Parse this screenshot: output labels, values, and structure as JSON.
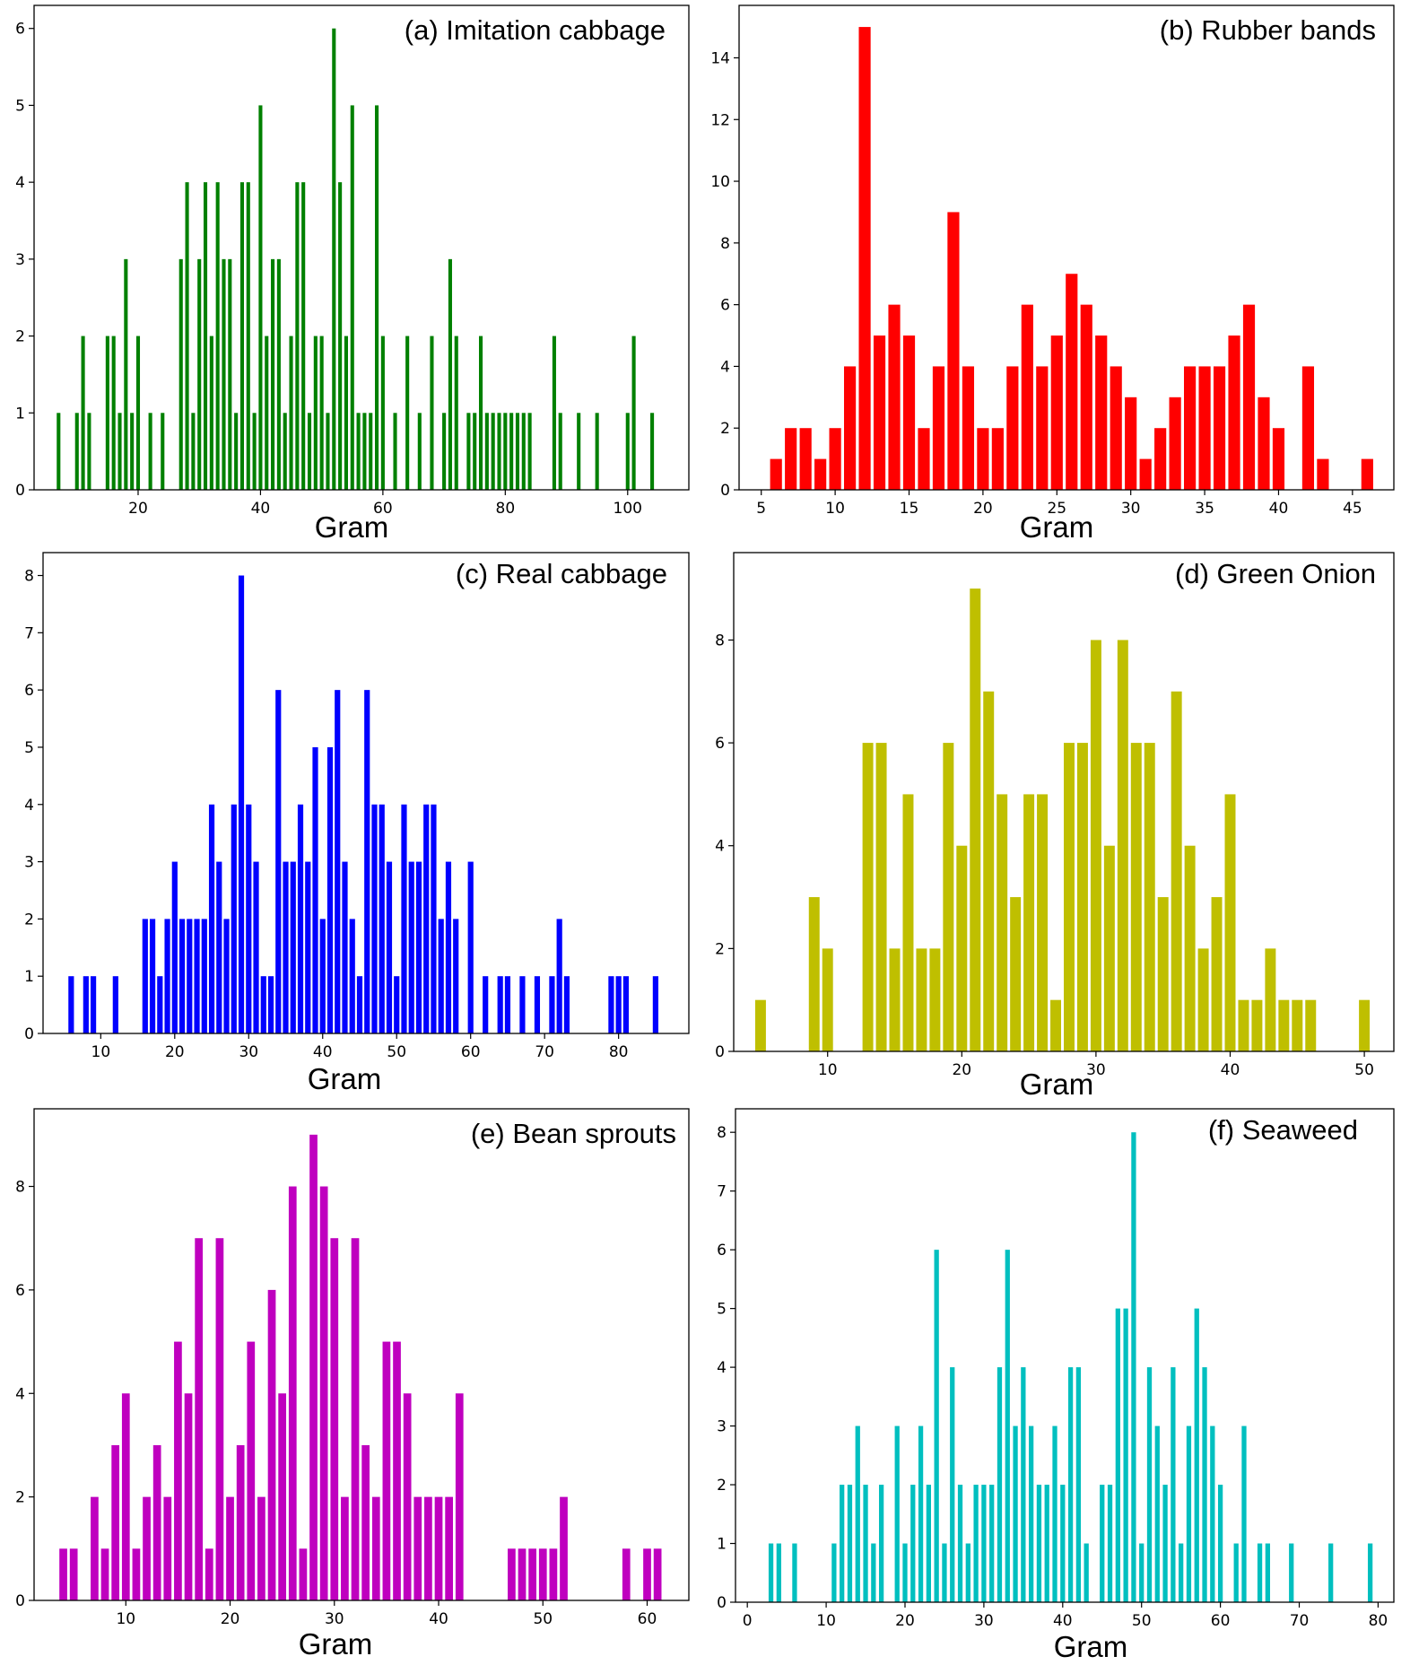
{
  "chart_data": [
    {
      "id": "a",
      "type": "bar",
      "title": "(a) Imitation cabbage",
      "xlabel": "Gram",
      "ylabel": "",
      "color": "#008000",
      "bar_width": 0.6,
      "xlim": [
        3,
        110
      ],
      "ylim": [
        0,
        6.3
      ],
      "xticks": [
        20,
        40,
        60,
        80,
        100
      ],
      "yticks": [
        0,
        1,
        2,
        3,
        4,
        5,
        6
      ],
      "x": [
        7,
        10,
        11,
        12,
        15,
        16,
        17,
        18,
        19,
        20,
        22,
        24,
        27,
        28,
        29,
        30,
        31,
        32,
        33,
        34,
        35,
        36,
        37,
        38,
        39,
        40,
        41,
        42,
        43,
        44,
        45,
        46,
        47,
        48,
        49,
        50,
        51,
        52,
        53,
        54,
        55,
        56,
        57,
        58,
        59,
        60,
        62,
        64,
        66,
        68,
        70,
        71,
        72,
        74,
        75,
        76,
        77,
        78,
        79,
        80,
        81,
        82,
        83,
        84,
        88,
        89,
        92,
        95,
        100,
        101,
        104
      ],
      "values": [
        1,
        1,
        2,
        1,
        2,
        2,
        1,
        3,
        1,
        2,
        1,
        1,
        3,
        4,
        1,
        3,
        4,
        2,
        4,
        3,
        3,
        1,
        4,
        4,
        1,
        5,
        2,
        3,
        3,
        1,
        2,
        4,
        4,
        1,
        2,
        2,
        1,
        6,
        4,
        2,
        5,
        1,
        1,
        1,
        5,
        2,
        1,
        2,
        1,
        2,
        1,
        3,
        2,
        1,
        1,
        2,
        1,
        1,
        1,
        1,
        1,
        1,
        1,
        1,
        2,
        1,
        1,
        1,
        1,
        2,
        1
      ]
    },
    {
      "id": "b",
      "type": "bar",
      "title": "(b) Rubber bands",
      "xlabel": "Gram",
      "ylabel": "",
      "color": "#ff0000",
      "bar_width": 0.8,
      "xlim": [
        3.5,
        47.8
      ],
      "ylim": [
        0,
        15.7
      ],
      "xticks": [
        5,
        10,
        15,
        20,
        25,
        30,
        35,
        40,
        45
      ],
      "yticks": [
        0,
        2,
        4,
        6,
        8,
        10,
        12,
        14
      ],
      "x": [
        6,
        7,
        8,
        9,
        10,
        11,
        12,
        13,
        14,
        15,
        16,
        17,
        18,
        19,
        20,
        21,
        22,
        23,
        24,
        25,
        26,
        27,
        28,
        29,
        30,
        31,
        32,
        33,
        34,
        35,
        36,
        37,
        38,
        39,
        40,
        42,
        43,
        46
      ],
      "values": [
        1,
        2,
        2,
        1,
        2,
        4,
        15,
        5,
        6,
        5,
        2,
        4,
        9,
        4,
        2,
        2,
        4,
        6,
        4,
        5,
        7,
        6,
        5,
        4,
        3,
        1,
        2,
        3,
        4,
        4,
        4,
        5,
        6,
        3,
        2,
        4,
        1,
        1
      ]
    },
    {
      "id": "c",
      "type": "bar",
      "title": "(c) Real cabbage",
      "xlabel": "Gram",
      "ylabel": "",
      "color": "#0000ff",
      "bar_width": 0.75,
      "xlim": [
        2.2,
        89.5
      ],
      "ylim": [
        0,
        8.4
      ],
      "xticks": [
        10,
        20,
        30,
        40,
        50,
        60,
        70,
        80
      ],
      "yticks": [
        0,
        1,
        2,
        3,
        4,
        5,
        6,
        7,
        8
      ],
      "x": [
        6,
        8,
        9,
        12,
        16,
        17,
        18,
        19,
        20,
        21,
        22,
        23,
        24,
        25,
        26,
        27,
        28,
        29,
        30,
        31,
        32,
        33,
        34,
        35,
        36,
        37,
        38,
        39,
        40,
        41,
        42,
        43,
        44,
        45,
        46,
        47,
        48,
        49,
        50,
        51,
        52,
        53,
        54,
        55,
        56,
        57,
        58,
        60,
        62,
        64,
        65,
        67,
        69,
        71,
        72,
        73,
        79,
        80,
        81,
        85
      ],
      "values": [
        1,
        1,
        1,
        1,
        2,
        2,
        1,
        2,
        3,
        2,
        2,
        2,
        2,
        4,
        3,
        2,
        4,
        8,
        4,
        3,
        1,
        1,
        6,
        3,
        3,
        4,
        3,
        5,
        2,
        5,
        6,
        3,
        2,
        1,
        6,
        4,
        4,
        3,
        1,
        4,
        3,
        3,
        4,
        4,
        2,
        3,
        2,
        3,
        1,
        1,
        1,
        1,
        1,
        1,
        2,
        1,
        1,
        1,
        1,
        1
      ]
    },
    {
      "id": "d",
      "type": "bar",
      "title": "(d) Green Onion",
      "xlabel": "Gram",
      "ylabel": "",
      "color": "#bfbf00",
      "bar_width": 0.8,
      "xlim": [
        3,
        52.2
      ],
      "ylim": [
        0,
        9.7
      ],
      "xticks": [
        10,
        20,
        30,
        40,
        50
      ],
      "yticks": [
        0,
        2,
        4,
        6,
        8
      ],
      "x": [
        5,
        9,
        10,
        13,
        14,
        15,
        16,
        17,
        18,
        19,
        20,
        21,
        22,
        23,
        24,
        25,
        26,
        27,
        28,
        29,
        30,
        31,
        32,
        33,
        34,
        35,
        36,
        37,
        38,
        39,
        40,
        41,
        42,
        43,
        44,
        45,
        46,
        50
      ],
      "values": [
        1,
        3,
        2,
        6,
        6,
        2,
        5,
        2,
        2,
        6,
        4,
        9,
        7,
        5,
        3,
        5,
        5,
        1,
        6,
        6,
        8,
        4,
        8,
        6,
        6,
        3,
        7,
        4,
        2,
        3,
        5,
        1,
        1,
        2,
        1,
        1,
        1,
        1
      ]
    },
    {
      "id": "e",
      "type": "bar",
      "title": "(e) Bean sprouts",
      "xlabel": "Gram",
      "ylabel": "",
      "color": "#bf00bf",
      "bar_width": 0.75,
      "xlim": [
        1.2,
        64
      ],
      "ylim": [
        0,
        9.5
      ],
      "xticks": [
        10,
        20,
        30,
        40,
        50,
        60
      ],
      "yticks": [
        0,
        2,
        4,
        6,
        8
      ],
      "x": [
        4,
        5,
        7,
        8,
        9,
        10,
        11,
        12,
        13,
        14,
        15,
        16,
        17,
        18,
        19,
        20,
        21,
        22,
        23,
        24,
        25,
        26,
        27,
        28,
        29,
        30,
        31,
        32,
        33,
        34,
        35,
        36,
        37,
        38,
        39,
        40,
        41,
        42,
        47,
        48,
        49,
        50,
        51,
        52,
        58,
        60,
        61
      ],
      "values": [
        1,
        1,
        2,
        1,
        3,
        4,
        1,
        2,
        3,
        2,
        5,
        4,
        7,
        1,
        7,
        2,
        3,
        5,
        2,
        6,
        4,
        8,
        1,
        9,
        8,
        7,
        2,
        7,
        3,
        2,
        5,
        5,
        4,
        2,
        2,
        2,
        2,
        4,
        1,
        1,
        1,
        1,
        1,
        2,
        1,
        1,
        1
      ]
    },
    {
      "id": "f",
      "type": "bar",
      "title": "(f) Seaweed",
      "xlabel": "Gram",
      "ylabel": "",
      "color": "#00bfbf",
      "bar_width": 0.6,
      "xlim": [
        -1.5,
        82
      ],
      "ylim": [
        0,
        8.4
      ],
      "xticks": [
        0,
        10,
        20,
        30,
        40,
        50,
        60,
        70,
        80
      ],
      "yticks": [
        0,
        1,
        2,
        3,
        4,
        5,
        6,
        7,
        8
      ],
      "x": [
        3,
        4,
        6,
        11,
        12,
        13,
        14,
        15,
        16,
        17,
        19,
        20,
        21,
        22,
        23,
        24,
        25,
        26,
        27,
        28,
        29,
        30,
        31,
        32,
        33,
        34,
        35,
        36,
        37,
        38,
        39,
        40,
        41,
        42,
        43,
        45,
        46,
        47,
        48,
        49,
        50,
        51,
        52,
        53,
        54,
        55,
        56,
        57,
        58,
        59,
        60,
        62,
        63,
        65,
        66,
        69,
        74,
        79
      ],
      "values": [
        1,
        1,
        1,
        1,
        2,
        2,
        3,
        2,
        1,
        2,
        3,
        1,
        2,
        3,
        2,
        6,
        1,
        4,
        2,
        1,
        2,
        2,
        2,
        4,
        6,
        3,
        4,
        3,
        2,
        2,
        3,
        2,
        4,
        4,
        1,
        2,
        2,
        5,
        5,
        8,
        1,
        4,
        3,
        2,
        4,
        1,
        3,
        5,
        4,
        3,
        2,
        1,
        3,
        1,
        1,
        1,
        1,
        1
      ]
    }
  ]
}
